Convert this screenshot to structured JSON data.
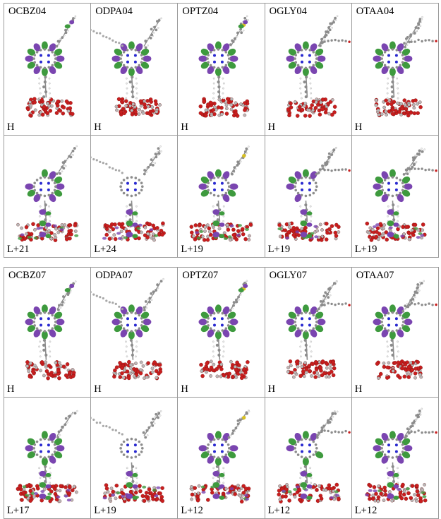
{
  "panels": [
    {
      "rows": [
        {
          "cells": [
            {
              "name": "OCBZ04",
              "orbital": "H"
            },
            {
              "name": "ODPA04",
              "orbital": "H"
            },
            {
              "name": "OPTZ04",
              "orbital": "H"
            },
            {
              "name": "OGLY04",
              "orbital": "H"
            },
            {
              "name": "OTAA04",
              "orbital": "H"
            }
          ]
        },
        {
          "cells": [
            {
              "name": "",
              "orbital": "L+21"
            },
            {
              "name": "",
              "orbital": "L+24"
            },
            {
              "name": "",
              "orbital": "L+19"
            },
            {
              "name": "",
              "orbital": "L+19"
            },
            {
              "name": "",
              "orbital": "L+19"
            }
          ]
        }
      ]
    },
    {
      "rows": [
        {
          "cells": [
            {
              "name": "OCBZ07",
              "orbital": "H"
            },
            {
              "name": "ODPA07",
              "orbital": "H"
            },
            {
              "name": "OPTZ07",
              "orbital": "H"
            },
            {
              "name": "OGLY07",
              "orbital": "H"
            },
            {
              "name": "OTAA07",
              "orbital": "H"
            }
          ]
        },
        {
          "cells": [
            {
              "name": "",
              "orbital": "L+17"
            },
            {
              "name": "",
              "orbital": "L+19"
            },
            {
              "name": "",
              "orbital": "L+12"
            },
            {
              "name": "",
              "orbital": "L+12"
            },
            {
              "name": "",
              "orbital": "L+12"
            }
          ]
        }
      ]
    }
  ],
  "colors": {
    "lobe_positive": "#7a45b0",
    "lobe_negative": "#3e9a3e",
    "slab_oxygen": "#c81e1e",
    "slab_titanium": "#b8b8b8",
    "carbon": "#8c8c8c",
    "nitrogen": "#2a2ad0",
    "sulfur": "#d8c020"
  }
}
